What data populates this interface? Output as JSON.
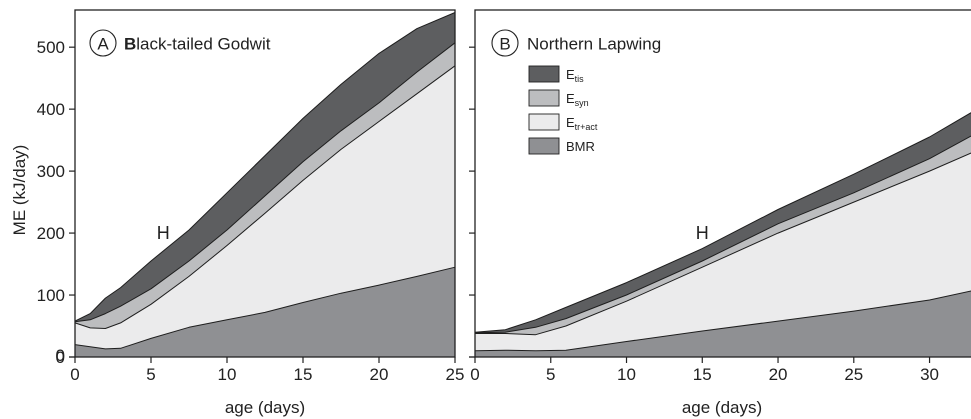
{
  "chart_data": [
    {
      "type": "area",
      "panel_letter": "A",
      "title_initial": "B",
      "title_rest": "lack-tailed Godwit",
      "xlabel": "age (days)",
      "ylabel": "ME (kJ/day)",
      "xlim": [
        0,
        25
      ],
      "ylim": [
        0,
        560
      ],
      "xticks": [
        0,
        5,
        10,
        15,
        20,
        25
      ],
      "yticks": [
        0,
        100,
        200,
        300,
        400,
        500
      ],
      "annotation": {
        "text": "H",
        "x": 5.8,
        "y": 200
      },
      "grid": false,
      "stacking": "cumulative",
      "series": [
        {
          "name": "BMR",
          "color": "#8f9093",
          "x": [
            0,
            2,
            3,
            5,
            7.5,
            10,
            12.5,
            15,
            17.5,
            20,
            22.5,
            25
          ],
          "values": [
            20,
            13,
            14,
            30,
            48,
            60,
            72,
            88,
            103,
            116,
            130,
            145
          ]
        },
        {
          "name": "E_tr+act",
          "color": "#ebebec",
          "x": [
            0,
            1,
            2,
            3,
            5,
            7.5,
            10,
            12.5,
            15,
            17.5,
            20,
            22.5,
            25
          ],
          "values": [
            55,
            47,
            46,
            55,
            85,
            130,
            180,
            232,
            285,
            335,
            380,
            425,
            470
          ]
        },
        {
          "name": "E_syn",
          "color": "#bcbdbf",
          "x": [
            0,
            1,
            2,
            3,
            5,
            7.5,
            10,
            12.5,
            15,
            17.5,
            20,
            22.5,
            25
          ],
          "values": [
            57,
            60,
            70,
            82,
            110,
            155,
            205,
            260,
            315,
            365,
            410,
            460,
            507
          ]
        },
        {
          "name": "E_tis",
          "color": "#5d5e60",
          "x": [
            0,
            1,
            2,
            3,
            5,
            7.5,
            10,
            12.5,
            15,
            17.5,
            20,
            22.5,
            25
          ],
          "values": [
            58,
            70,
            95,
            112,
            155,
            205,
            265,
            325,
            385,
            440,
            490,
            530,
            556
          ]
        }
      ]
    },
    {
      "type": "area",
      "panel_letter": "B",
      "title": "Northern Lapwing",
      "xlabel": "age (days)",
      "xlim": [
        0,
        33
      ],
      "ylim": [
        0,
        560
      ],
      "xticks": [
        0,
        5,
        10,
        15,
        20,
        25,
        30
      ],
      "annotation": {
        "text": "H",
        "x": 15,
        "y": 200
      },
      "grid": false,
      "stacking": "cumulative",
      "series": [
        {
          "name": "BMR",
          "color": "#8f9093",
          "x": [
            0,
            2,
            4,
            6,
            10,
            15,
            20,
            25,
            30,
            33
          ],
          "values": [
            10,
            11,
            10,
            11,
            25,
            42,
            58,
            74,
            92,
            108
          ]
        },
        {
          "name": "E_tr+act",
          "color": "#ebebec",
          "x": [
            0,
            2,
            4,
            6,
            10,
            15,
            20,
            25,
            30,
            33
          ],
          "values": [
            38,
            38,
            36,
            50,
            90,
            145,
            200,
            250,
            300,
            332
          ]
        },
        {
          "name": "E_syn",
          "color": "#bcbdbf",
          "x": [
            0,
            2,
            4,
            6,
            10,
            15,
            20,
            25,
            30,
            33
          ],
          "values": [
            39,
            40,
            48,
            62,
            100,
            155,
            215,
            265,
            320,
            360
          ]
        },
        {
          "name": "E_tis",
          "color": "#5d5e60",
          "x": [
            0,
            2,
            4,
            6,
            10,
            15,
            20,
            25,
            30,
            33
          ],
          "values": [
            40,
            44,
            60,
            80,
            120,
            175,
            238,
            295,
            355,
            398
          ]
        }
      ]
    }
  ],
  "legend": {
    "placement": "upper-left of panel B",
    "entries": [
      {
        "base": "E",
        "sub": "tis",
        "color": "#5d5e60"
      },
      {
        "base": "E",
        "sub": "syn",
        "color": "#bcbdbf"
      },
      {
        "base": "E",
        "sub": "tr+act",
        "color": "#ebebec"
      },
      {
        "base": "BMR",
        "sub": "",
        "color": "#8f9093"
      }
    ]
  }
}
